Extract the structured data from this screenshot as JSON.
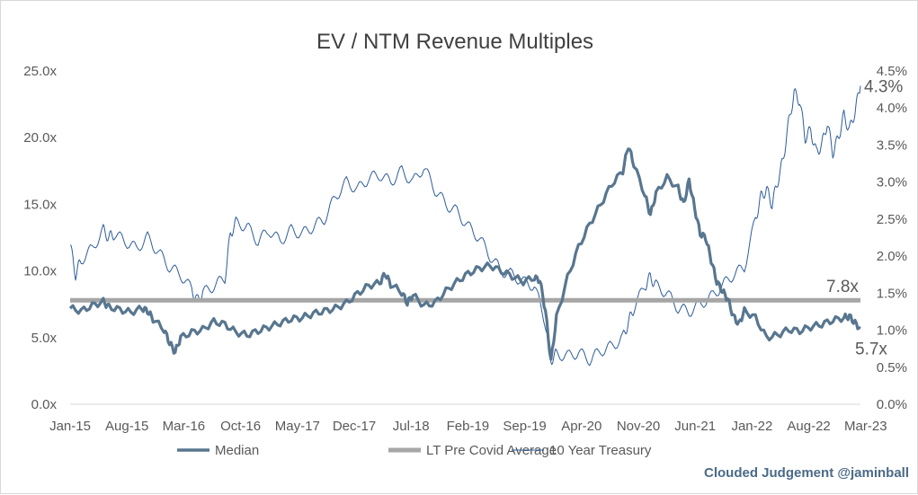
{
  "chart_data": {
    "type": "line",
    "title": "EV / NTM Revenue Multiples",
    "credit": "Clouded Judgement @jaminball",
    "x_ticks": [
      "Jan-15",
      "Aug-15",
      "Mar-16",
      "Oct-16",
      "May-17",
      "Dec-17",
      "Jul-18",
      "Feb-19",
      "Sep-19",
      "Apr-20",
      "Nov-20",
      "Jun-21",
      "Jan-22",
      "Aug-22",
      "Mar-23"
    ],
    "y_left": {
      "min": 0,
      "max": 25,
      "ticks": [
        "0.0x",
        "5.0x",
        "10.0x",
        "15.0x",
        "20.0x",
        "25.0x"
      ]
    },
    "y_right": {
      "min": 0,
      "max": 4.5,
      "ticks": [
        "0.0%",
        "0.5%",
        "1.0%",
        "1.5%",
        "2.0%",
        "2.5%",
        "3.0%",
        "3.5%",
        "4.0%",
        "4.5%"
      ]
    },
    "grid": false,
    "legend_position": "bottom",
    "annotations": {
      "average_label": "7.8x",
      "median_last": "5.7x",
      "treasury_last": "4.3%"
    },
    "series": [
      {
        "name": "Median",
        "axis": "left",
        "color": "#58768f",
        "points": [
          [
            0,
            7.2
          ],
          [
            2,
            7.0
          ],
          [
            4,
            7.4
          ],
          [
            6,
            7.7
          ],
          [
            7,
            7.3
          ],
          [
            9,
            7.1
          ],
          [
            11,
            6.9
          ],
          [
            13,
            7.2
          ],
          [
            14,
            7.0
          ],
          [
            15,
            6.4
          ],
          [
            17,
            5.6
          ],
          [
            18,
            4.6
          ],
          [
            19,
            3.9
          ],
          [
            20,
            5.0
          ],
          [
            22,
            5.4
          ],
          [
            24,
            5.6
          ],
          [
            26,
            6.2
          ],
          [
            28,
            6.0
          ],
          [
            30,
            5.4
          ],
          [
            32,
            5.2
          ],
          [
            34,
            5.5
          ],
          [
            36,
            5.8
          ],
          [
            38,
            6.1
          ],
          [
            40,
            6.4
          ],
          [
            42,
            6.5
          ],
          [
            44,
            6.8
          ],
          [
            46,
            7.0
          ],
          [
            48,
            7.2
          ],
          [
            50,
            7.6
          ],
          [
            52,
            8.3
          ],
          [
            54,
            8.9
          ],
          [
            56,
            9.1
          ],
          [
            57,
            9.8
          ],
          [
            58,
            9.0
          ],
          [
            60,
            8.4
          ],
          [
            61,
            7.6
          ],
          [
            62,
            8.2
          ],
          [
            64,
            7.4
          ],
          [
            66,
            7.6
          ],
          [
            68,
            8.5
          ],
          [
            70,
            9.2
          ],
          [
            72,
            9.8
          ],
          [
            74,
            10.2
          ],
          [
            76,
            10.4
          ],
          [
            78,
            10.0
          ],
          [
            80,
            9.6
          ],
          [
            82,
            9.2
          ],
          [
            84,
            9.5
          ],
          [
            85,
            9.3
          ],
          [
            86,
            7.0
          ],
          [
            87,
            3.2
          ],
          [
            88,
            6.5
          ],
          [
            90,
            9.5
          ],
          [
            92,
            11.8
          ],
          [
            94,
            13.5
          ],
          [
            96,
            15.0
          ],
          [
            98,
            16.5
          ],
          [
            100,
            17.5
          ],
          [
            101,
            19.4
          ],
          [
            102,
            18.0
          ],
          [
            104,
            15.7
          ],
          [
            105,
            14.2
          ],
          [
            106,
            15.8
          ],
          [
            108,
            17.0
          ],
          [
            110,
            16.2
          ],
          [
            111,
            15.0
          ],
          [
            112,
            16.8
          ],
          [
            113,
            14.7
          ],
          [
            114,
            12.8
          ],
          [
            115,
            12.5
          ],
          [
            116,
            10.8
          ],
          [
            117,
            9.2
          ],
          [
            118,
            8.5
          ],
          [
            119,
            7.9
          ],
          [
            120,
            6.6
          ],
          [
            121,
            6.0
          ],
          [
            122,
            7.0
          ],
          [
            124,
            6.5
          ],
          [
            126,
            5.0
          ],
          [
            128,
            5.2
          ],
          [
            130,
            5.6
          ],
          [
            132,
            5.5
          ],
          [
            134,
            5.8
          ],
          [
            136,
            6.0
          ],
          [
            138,
            6.3
          ],
          [
            140,
            6.5
          ],
          [
            141,
            6.6
          ],
          [
            142,
            6.1
          ],
          [
            143,
            5.7
          ]
        ]
      },
      {
        "name": "LT Pre Covid Average",
        "axis": "left",
        "color": "#a6a6a6",
        "points": [
          [
            0,
            7.8
          ],
          [
            143,
            7.8
          ]
        ]
      },
      {
        "name": "10 Year Treasury",
        "axis": "right",
        "color": "#2e5c9a",
        "points": [
          [
            0,
            2.15
          ],
          [
            1,
            1.75
          ],
          [
            2,
            1.95
          ],
          [
            4,
            2.1
          ],
          [
            6,
            2.35
          ],
          [
            7,
            2.25
          ],
          [
            8,
            2.3
          ],
          [
            10,
            2.2
          ],
          [
            12,
            2.1
          ],
          [
            14,
            2.25
          ],
          [
            16,
            2.05
          ],
          [
            18,
            1.85
          ],
          [
            20,
            1.75
          ],
          [
            22,
            1.55
          ],
          [
            23,
            1.4
          ],
          [
            24,
            1.5
          ],
          [
            26,
            1.6
          ],
          [
            28,
            1.7
          ],
          [
            29,
            2.3
          ],
          [
            30,
            2.45
          ],
          [
            32,
            2.4
          ],
          [
            34,
            2.2
          ],
          [
            36,
            2.35
          ],
          [
            38,
            2.2
          ],
          [
            40,
            2.35
          ],
          [
            42,
            2.3
          ],
          [
            44,
            2.4
          ],
          [
            46,
            2.5
          ],
          [
            48,
            2.8
          ],
          [
            50,
            3.0
          ],
          [
            52,
            2.9
          ],
          [
            54,
            3.05
          ],
          [
            56,
            3.1
          ],
          [
            58,
            3.0
          ],
          [
            60,
            3.15
          ],
          [
            62,
            3.0
          ],
          [
            64,
            3.2
          ],
          [
            66,
            2.9
          ],
          [
            68,
            2.7
          ],
          [
            70,
            2.6
          ],
          [
            72,
            2.4
          ],
          [
            74,
            2.25
          ],
          [
            76,
            2.0
          ],
          [
            78,
            1.8
          ],
          [
            80,
            1.75
          ],
          [
            82,
            1.65
          ],
          [
            84,
            1.6
          ],
          [
            86,
            1.1
          ],
          [
            87,
            0.6
          ],
          [
            88,
            0.68
          ],
          [
            90,
            0.65
          ],
          [
            92,
            0.7
          ],
          [
            94,
            0.6
          ],
          [
            96,
            0.72
          ],
          [
            98,
            0.78
          ],
          [
            100,
            0.9
          ],
          [
            101,
            1.1
          ],
          [
            102,
            1.3
          ],
          [
            104,
            1.6
          ],
          [
            105,
            1.72
          ],
          [
            106,
            1.6
          ],
          [
            108,
            1.5
          ],
          [
            110,
            1.3
          ],
          [
            112,
            1.25
          ],
          [
            114,
            1.35
          ],
          [
            116,
            1.45
          ],
          [
            118,
            1.6
          ],
          [
            120,
            1.75
          ],
          [
            122,
            1.85
          ],
          [
            124,
            2.5
          ],
          [
            125,
            2.8
          ],
          [
            126,
            2.9
          ],
          [
            127,
            2.7
          ],
          [
            128,
            3.0
          ],
          [
            129,
            3.3
          ],
          [
            130,
            3.8
          ],
          [
            131,
            4.2
          ],
          [
            132,
            4.1
          ],
          [
            133,
            3.6
          ],
          [
            134,
            3.7
          ],
          [
            135,
            3.4
          ],
          [
            136,
            3.5
          ],
          [
            137,
            3.8
          ],
          [
            138,
            3.4
          ],
          [
            139,
            3.6
          ],
          [
            140,
            3.9
          ],
          [
            141,
            3.7
          ],
          [
            142,
            3.95
          ],
          [
            143,
            4.3
          ]
        ]
      }
    ]
  }
}
